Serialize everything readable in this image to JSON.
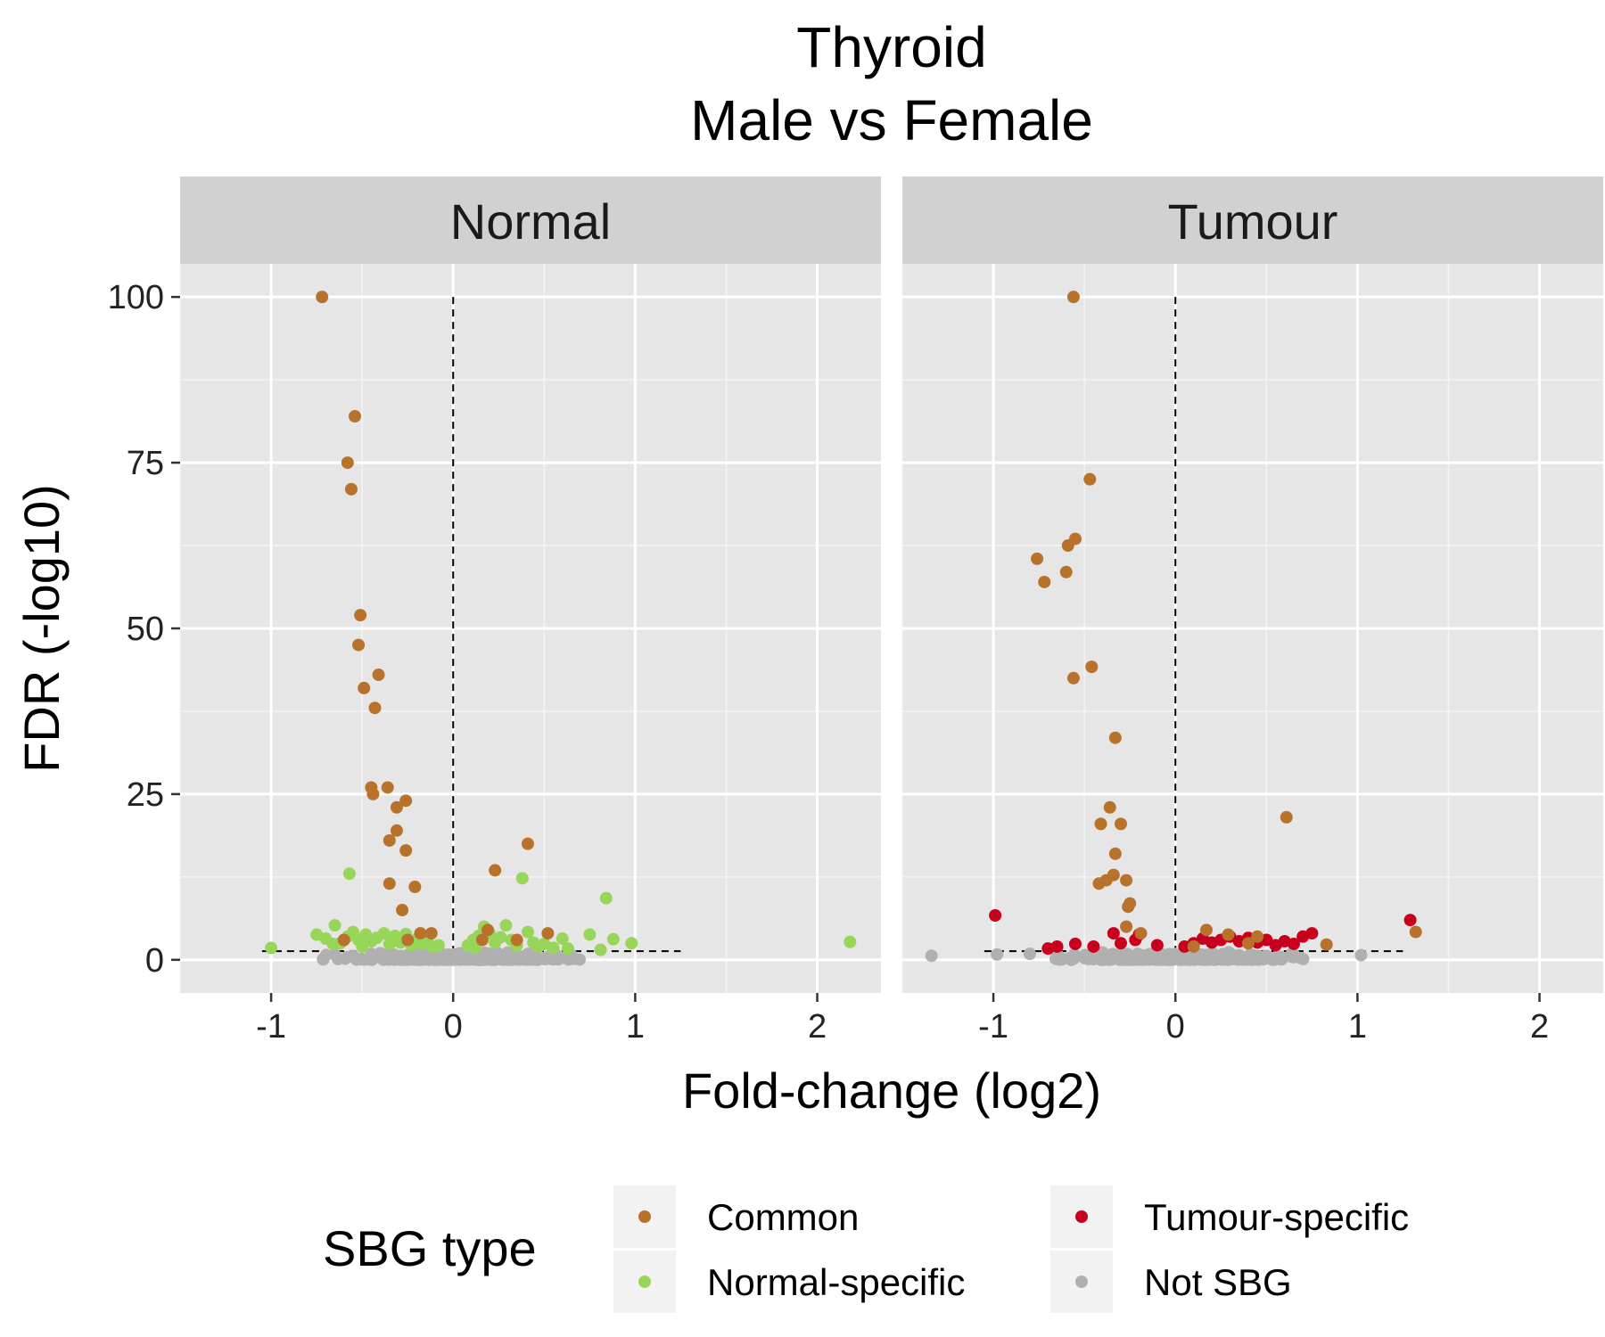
{
  "chart_data": {
    "type": "scatter",
    "title": "Thyroid",
    "subtitle": "Male vs Female",
    "xlabel": "Fold-change (log2)",
    "ylabel": "FDR (-log10)",
    "xlim": [
      -1.5,
      2.35
    ],
    "ylim": [
      -5,
      105
    ],
    "x_ticks": [
      -1,
      0,
      1,
      2
    ],
    "x_tick_labels": [
      "-1",
      "0",
      "1",
      "2"
    ],
    "y_ticks": [
      0,
      25,
      50,
      75,
      100
    ],
    "y_tick_labels": [
      "0",
      "25",
      "50",
      "75",
      "100"
    ],
    "grid": true,
    "threshold_y": 1.3,
    "reference_x": 0,
    "legend": {
      "title": "SBG type",
      "placement": "bottom",
      "entries": [
        {
          "key": "common",
          "label": "Common",
          "color": "#b8722c"
        },
        {
          "key": "normal",
          "label": "Normal-specific",
          "color": "#98d65a"
        },
        {
          "key": "tumour",
          "label": "Tumour-specific",
          "color": "#c8001e"
        },
        {
          "key": "notsbg",
          "label": "Not SBG",
          "color": "#b0b0b0"
        }
      ]
    },
    "panels": [
      {
        "name": "Normal",
        "points": {
          "common": [
            [
              -0.72,
              100
            ],
            [
              -0.54,
              82
            ],
            [
              -0.58,
              75
            ],
            [
              -0.56,
              71
            ],
            [
              -0.51,
              52
            ],
            [
              -0.52,
              47.5
            ],
            [
              -0.49,
              41
            ],
            [
              -0.41,
              43
            ],
            [
              -0.43,
              38
            ],
            [
              -0.45,
              26
            ],
            [
              -0.44,
              25
            ],
            [
              -0.36,
              26
            ],
            [
              -0.31,
              23
            ],
            [
              -0.26,
              24
            ],
            [
              -0.31,
              19.5
            ],
            [
              -0.35,
              18
            ],
            [
              -0.26,
              16.5
            ],
            [
              -0.35,
              11.5
            ],
            [
              -0.21,
              11
            ],
            [
              -0.28,
              7.5
            ],
            [
              -0.18,
              4
            ],
            [
              -0.12,
              4
            ],
            [
              0.23,
              13.5
            ],
            [
              0.41,
              17.5
            ],
            [
              0.19,
              4.5
            ],
            [
              0.52,
              4
            ],
            [
              0.16,
              3
            ],
            [
              0.35,
              3
            ],
            [
              -0.6,
              3
            ],
            [
              -0.25,
              3
            ]
          ],
          "normal": [
            [
              -1.0,
              1.8
            ],
            [
              -0.57,
              13
            ],
            [
              -0.65,
              5.2
            ],
            [
              -0.75,
              3.8
            ],
            [
              -0.7,
              3.2
            ],
            [
              -0.62,
              2.5
            ],
            [
              -0.58,
              3.5
            ],
            [
              -0.55,
              4.2
            ],
            [
              -0.52,
              3.0
            ],
            [
              -0.48,
              3.8
            ],
            [
              -0.45,
              2.8
            ],
            [
              -0.42,
              3.3
            ],
            [
              -0.38,
              4.0
            ],
            [
              -0.35,
              2.4
            ],
            [
              -0.32,
              3.6
            ],
            [
              -0.29,
              2.6
            ],
            [
              -0.26,
              3.9
            ],
            [
              -0.23,
              2.2
            ],
            [
              -0.2,
              3.1
            ],
            [
              -0.17,
              2.4
            ],
            [
              -0.14,
              2.8
            ],
            [
              -0.11,
              1.9
            ],
            [
              -0.08,
              2.2
            ],
            [
              -0.5,
              2.0
            ],
            [
              -0.66,
              2.4
            ],
            [
              0.08,
              2.2
            ],
            [
              0.11,
              3.0
            ],
            [
              0.14,
              3.6
            ],
            [
              0.17,
              5.0
            ],
            [
              0.2,
              4.0
            ],
            [
              0.23,
              2.6
            ],
            [
              0.26,
              3.4
            ],
            [
              0.29,
              5.2
            ],
            [
              0.32,
              3.0
            ],
            [
              0.35,
              2.2
            ],
            [
              0.38,
              12.3
            ],
            [
              0.41,
              4.2
            ],
            [
              0.44,
              2.6
            ],
            [
              0.47,
              2.0
            ],
            [
              0.55,
              1.8
            ],
            [
              0.6,
              3.2
            ],
            [
              0.63,
              1.7
            ],
            [
              0.75,
              3.8
            ],
            [
              0.81,
              1.5
            ],
            [
              0.84,
              9.3
            ],
            [
              0.88,
              3.1
            ],
            [
              0.98,
              2.5
            ],
            [
              2.18,
              2.7
            ],
            [
              0.5,
              2.4
            ],
            [
              0.12,
              1.8
            ]
          ],
          "notsbg_sample": [
            [
              -0.65,
              0.8
            ],
            [
              -0.55,
              0.6
            ],
            [
              -0.45,
              0.9
            ],
            [
              -0.35,
              0.5
            ],
            [
              -0.25,
              0.7
            ],
            [
              -0.15,
              0.4
            ],
            [
              -0.05,
              0.3
            ],
            [
              0.05,
              0.3
            ],
            [
              0.15,
              0.5
            ],
            [
              0.25,
              0.7
            ],
            [
              0.35,
              0.6
            ],
            [
              0.45,
              0.8
            ],
            [
              0.55,
              0.5
            ],
            [
              0.65,
              0.7
            ],
            [
              -0.4,
              1.0
            ],
            [
              0.3,
              1.1
            ]
          ]
        }
      },
      {
        "name": "Tumour",
        "points": {
          "common": [
            [
              -0.56,
              100
            ],
            [
              -0.47,
              72.5
            ],
            [
              -0.55,
              63.5
            ],
            [
              -0.59,
              62.5
            ],
            [
              -0.76,
              60.5
            ],
            [
              -0.6,
              58.5
            ],
            [
              -0.72,
              57
            ],
            [
              -0.46,
              44.2
            ],
            [
              -0.56,
              42.5
            ],
            [
              -0.33,
              33.5
            ],
            [
              -0.36,
              23
            ],
            [
              -0.41,
              20.5
            ],
            [
              -0.3,
              20.5
            ],
            [
              -0.33,
              16
            ],
            [
              -0.42,
              11.5
            ],
            [
              -0.38,
              12
            ],
            [
              -0.34,
              12.8
            ],
            [
              -0.27,
              12
            ],
            [
              -0.25,
              8.5
            ],
            [
              -0.26,
              8
            ],
            [
              -0.27,
              5
            ],
            [
              -0.19,
              4
            ],
            [
              0.61,
              21.5
            ],
            [
              0.17,
              4.5
            ],
            [
              0.29,
              3.8
            ],
            [
              0.45,
              3.5
            ],
            [
              0.83,
              2.3
            ],
            [
              1.32,
              4.2
            ],
            [
              0.4,
              2.5
            ],
            [
              0.1,
              2.0
            ]
          ],
          "tumour": [
            [
              -0.99,
              6.7
            ],
            [
              -0.34,
              4.0
            ],
            [
              -0.22,
              3.0
            ],
            [
              -0.2,
              3.8
            ],
            [
              -0.3,
              2.5
            ],
            [
              -0.45,
              2.0
            ],
            [
              -0.55,
              2.4
            ],
            [
              -0.65,
              2.0
            ],
            [
              -0.7,
              1.7
            ],
            [
              -0.1,
              2.2
            ],
            [
              0.05,
              2.0
            ],
            [
              0.1,
              2.5
            ],
            [
              0.15,
              3.2
            ],
            [
              0.2,
              2.6
            ],
            [
              0.25,
              3.0
            ],
            [
              0.3,
              3.5
            ],
            [
              0.35,
              2.8
            ],
            [
              0.4,
              3.3
            ],
            [
              0.45,
              2.6
            ],
            [
              0.5,
              3.0
            ],
            [
              0.55,
              2.2
            ],
            [
              0.6,
              2.8
            ],
            [
              0.65,
              2.4
            ],
            [
              0.7,
              3.5
            ],
            [
              0.75,
              4.0
            ],
            [
              1.29,
              6.0
            ]
          ],
          "notsbg_sample": [
            [
              -1.34,
              0.6
            ],
            [
              -0.98,
              0.8
            ],
            [
              -0.8,
              0.9
            ],
            [
              -0.65,
              0.7
            ],
            [
              -0.5,
              0.6
            ],
            [
              -0.35,
              0.8
            ],
            [
              -0.2,
              0.5
            ],
            [
              -0.05,
              0.3
            ],
            [
              0.05,
              0.3
            ],
            [
              0.2,
              0.5
            ],
            [
              0.35,
              0.7
            ],
            [
              0.5,
              0.6
            ],
            [
              0.65,
              0.8
            ],
            [
              1.02,
              0.7
            ],
            [
              -0.4,
              1.1
            ],
            [
              0.3,
              1.0
            ]
          ]
        }
      }
    ]
  }
}
